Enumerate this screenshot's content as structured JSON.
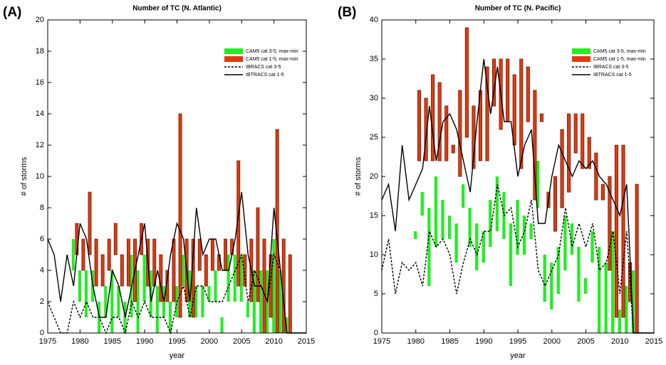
{
  "chart_data": [
    {
      "type": "range_bar_line",
      "panel_label": "(A)",
      "title": "Number of TC (N. Atlantic)",
      "x_label": "year",
      "y_label": "# of storms",
      "xlim": [
        1975,
        2015
      ],
      "xticks": [
        1975,
        1980,
        1985,
        1990,
        1995,
        2000,
        2005,
        2010,
        2015
      ],
      "ylim": [
        0,
        20
      ],
      "yticks": [
        0,
        2,
        4,
        6,
        8,
        10,
        12,
        14,
        16,
        18,
        20
      ],
      "series": [
        {
          "name": "CAM5 cat 3-5, max-min",
          "kind": "range",
          "color": "#22ee22",
          "x": [
            1979,
            1980,
            1981,
            1982,
            1983,
            1984,
            1985,
            1986,
            1987,
            1988,
            1989,
            1990,
            1991,
            1992,
            1993,
            1994,
            1995,
            1996,
            1997,
            1998,
            1999,
            2000,
            2001,
            2002,
            2003,
            2004,
            2005,
            2006,
            2007,
            2008,
            2009,
            2010,
            2011,
            2012
          ],
          "low": [
            4,
            2,
            1,
            2,
            0,
            1,
            0,
            1,
            0,
            1,
            0,
            2,
            1,
            0,
            1,
            0,
            1,
            3,
            1,
            1,
            1,
            2,
            2,
            0,
            2,
            2,
            2,
            1,
            0,
            0,
            0,
            0,
            0,
            0
          ],
          "high": [
            6,
            4,
            4,
            4,
            2,
            3,
            4,
            3,
            2,
            5,
            4,
            5,
            4,
            3,
            3,
            2,
            3,
            5,
            4,
            3,
            3,
            3,
            4,
            1,
            5,
            5,
            5,
            2,
            4,
            4,
            4,
            6,
            4,
            1
          ]
        },
        {
          "name": "CAM5 cat 1-5, max-min",
          "kind": "range",
          "color": "#e03a10",
          "x": [
            1979,
            1980,
            1981,
            1982,
            1983,
            1984,
            1985,
            1986,
            1987,
            1988,
            1989,
            1990,
            1991,
            1992,
            1993,
            1994,
            1995,
            1996,
            1997,
            1998,
            1999,
            2000,
            2001,
            2002,
            2003,
            2004,
            2005,
            2006,
            2007,
            2008,
            2009,
            2010,
            2011,
            2012
          ],
          "low": [
            5,
            4,
            5,
            3,
            3,
            4,
            5,
            3,
            3,
            2,
            5,
            3,
            3,
            2,
            2,
            2,
            1,
            2,
            1,
            4,
            3,
            4,
            4,
            4,
            5,
            3,
            3,
            2,
            2,
            0,
            1,
            0,
            0,
            0
          ],
          "high": [
            7,
            6,
            9,
            6,
            5,
            6,
            7,
            5,
            6,
            6,
            7,
            6,
            6,
            5,
            4,
            6,
            14,
            6,
            6,
            6,
            5,
            6,
            5,
            6,
            6,
            11,
            5,
            6,
            8,
            6,
            5,
            13,
            6,
            5
          ]
        },
        {
          "name": "IBRACS cat 3-5",
          "kind": "line",
          "dashed": true,
          "color": "#000000",
          "x": [
            1975,
            1976,
            1977,
            1978,
            1979,
            1980,
            1981,
            1982,
            1983,
            1984,
            1985,
            1986,
            1987,
            1988,
            1989,
            1990,
            1991,
            1992,
            1993,
            1994,
            1995,
            1996,
            1997,
            1998,
            1999,
            2000,
            2001,
            2002,
            2003,
            2004,
            2005,
            2006,
            2007,
            2008,
            2009,
            2010,
            2011,
            2012,
            2013,
            2014,
            2015
          ],
          "values": [
            2,
            1,
            0,
            0,
            2,
            1,
            2,
            1,
            1,
            0,
            1,
            1,
            0,
            2,
            1,
            2,
            1,
            1,
            1,
            0,
            2,
            3,
            1,
            3,
            3,
            2,
            2,
            2,
            3,
            4,
            5,
            2,
            4,
            3,
            2,
            5,
            4,
            0,
            0,
            0,
            0
          ]
        },
        {
          "name": "IBTRACS cat 1-5",
          "kind": "line",
          "dashed": false,
          "color": "#000000",
          "x": [
            1975,
            1976,
            1977,
            1978,
            1979,
            1980,
            1981,
            1982,
            1983,
            1984,
            1985,
            1986,
            1987,
            1988,
            1989,
            1990,
            1991,
            1992,
            1993,
            1994,
            1995,
            1996,
            1997,
            1998,
            1999,
            2000,
            2001,
            2002,
            2003,
            2004,
            2005,
            2006,
            2007,
            2008,
            2009,
            2010,
            2011,
            2012,
            2013,
            2014,
            2015
          ],
          "values": [
            6,
            5,
            2,
            5,
            3,
            7,
            6,
            3,
            1,
            1,
            4,
            3,
            1,
            3,
            5,
            7,
            2,
            4,
            2,
            5,
            7,
            6,
            2,
            8,
            5,
            6,
            6,
            4,
            4,
            6,
            9,
            5,
            3,
            3,
            2,
            8,
            4,
            0,
            0,
            0,
            0
          ]
        }
      ]
    },
    {
      "type": "range_bar_line",
      "panel_label": "(B)",
      "title": "Number of TC (N. Pacific)",
      "x_label": "year",
      "y_label": "# of storms",
      "xlim": [
        1975,
        2015
      ],
      "xticks": [
        1975,
        1980,
        1985,
        1990,
        1995,
        2000,
        2005,
        2010,
        2015
      ],
      "ylim": [
        0,
        40
      ],
      "yticks": [
        0,
        5,
        10,
        15,
        20,
        25,
        30,
        35,
        40
      ],
      "series": [
        {
          "name": "CAM5 cat 3-5, max-min",
          "kind": "range",
          "color": "#22ee22",
          "x": [
            1980,
            1981,
            1982,
            1983,
            1984,
            1985,
            1986,
            1987,
            1988,
            1989,
            1990,
            1991,
            1992,
            1993,
            1994,
            1995,
            1996,
            1997,
            1998,
            1999,
            2000,
            2001,
            2002,
            2003,
            2004,
            2005,
            2006,
            2007,
            2008,
            2009,
            2010,
            2011,
            2012
          ],
          "low": [
            12,
            15,
            6,
            11,
            12,
            12,
            9,
            16,
            11,
            8,
            9,
            11,
            13,
            12,
            6,
            10,
            10,
            12,
            16,
            4,
            3,
            5,
            8,
            10,
            4,
            5,
            9,
            0,
            0,
            0,
            0,
            0,
            0
          ],
          "high": [
            13,
            18,
            16,
            20,
            17,
            15,
            14,
            19,
            16,
            14,
            13,
            17,
            20,
            18,
            14,
            17,
            15,
            14,
            22,
            10,
            9,
            11,
            15,
            14,
            11,
            7,
            13,
            11,
            9,
            13,
            3,
            6,
            8
          ]
        },
        {
          "name": "CAM5 cat 1-5, max-min",
          "kind": "range",
          "color": "#e03a10",
          "x": [
            1980,
            1981,
            1982,
            1983,
            1984,
            1985,
            1986,
            1987,
            1988,
            1989,
            1990,
            1991,
            1992,
            1993,
            1994,
            1995,
            1996,
            1997,
            1998,
            1999,
            2000,
            2001,
            2002,
            2003,
            2004,
            2005,
            2006,
            2007,
            2008,
            2009,
            2010,
            2011,
            2012
          ],
          "low": [
            22,
            22,
            22,
            22,
            22,
            23,
            20,
            25,
            21,
            22,
            22,
            29,
            26,
            27,
            24,
            21,
            27,
            17,
            27,
            16,
            13,
            16,
            18,
            23,
            21,
            21,
            17,
            17,
            8,
            2,
            2,
            4,
            0
          ],
          "high": [
            31,
            30,
            33,
            32,
            29,
            24,
            31,
            39,
            29,
            31,
            34,
            35,
            35,
            35,
            33,
            35,
            34,
            31,
            28,
            18,
            20,
            26,
            28,
            28,
            28,
            25,
            23,
            19,
            20,
            24,
            24,
            9,
            19
          ]
        },
        {
          "name": "IBRACS cat 3-5",
          "kind": "line",
          "dashed": true,
          "color": "#000000",
          "x": [
            1975,
            1976,
            1977,
            1978,
            1979,
            1980,
            1981,
            1982,
            1983,
            1984,
            1985,
            1986,
            1987,
            1988,
            1989,
            1990,
            1991,
            1992,
            1993,
            1994,
            1995,
            1996,
            1997,
            1998,
            1999,
            2000,
            2001,
            2002,
            2003,
            2004,
            2005,
            2006,
            2007,
            2008,
            2009,
            2010,
            2011,
            2012,
            2013,
            2014,
            2015
          ],
          "values": [
            8,
            12,
            5,
            9,
            8,
            9,
            6,
            13,
            11,
            12,
            10,
            5,
            9,
            12,
            10,
            13,
            13,
            19,
            15,
            16,
            11,
            13,
            17,
            8,
            6,
            8,
            10,
            16,
            11,
            14,
            11,
            14,
            8,
            9,
            13,
            5,
            13,
            0,
            0,
            0,
            0
          ]
        },
        {
          "name": "IBTRACS cat 1-5",
          "kind": "line",
          "dashed": false,
          "color": "#000000",
          "x": [
            1975,
            1976,
            1977,
            1978,
            1979,
            1980,
            1981,
            1982,
            1983,
            1984,
            1985,
            1986,
            1987,
            1988,
            1989,
            1990,
            1991,
            1992,
            1993,
            1994,
            1995,
            1996,
            1997,
            1998,
            1999,
            2000,
            2001,
            2002,
            2003,
            2004,
            2005,
            2006,
            2007,
            2008,
            2009,
            2010,
            2011,
            2012,
            2013,
            2014,
            2015
          ],
          "values": [
            17,
            19,
            13,
            24,
            17,
            19,
            21,
            29,
            22,
            27,
            28,
            26,
            22,
            18,
            27,
            35,
            28,
            34,
            27,
            27,
            20,
            24,
            26,
            14,
            14,
            20,
            24,
            22,
            20,
            22,
            21,
            22,
            20,
            19,
            17,
            15,
            19,
            0,
            0,
            0,
            0
          ]
        }
      ]
    }
  ]
}
